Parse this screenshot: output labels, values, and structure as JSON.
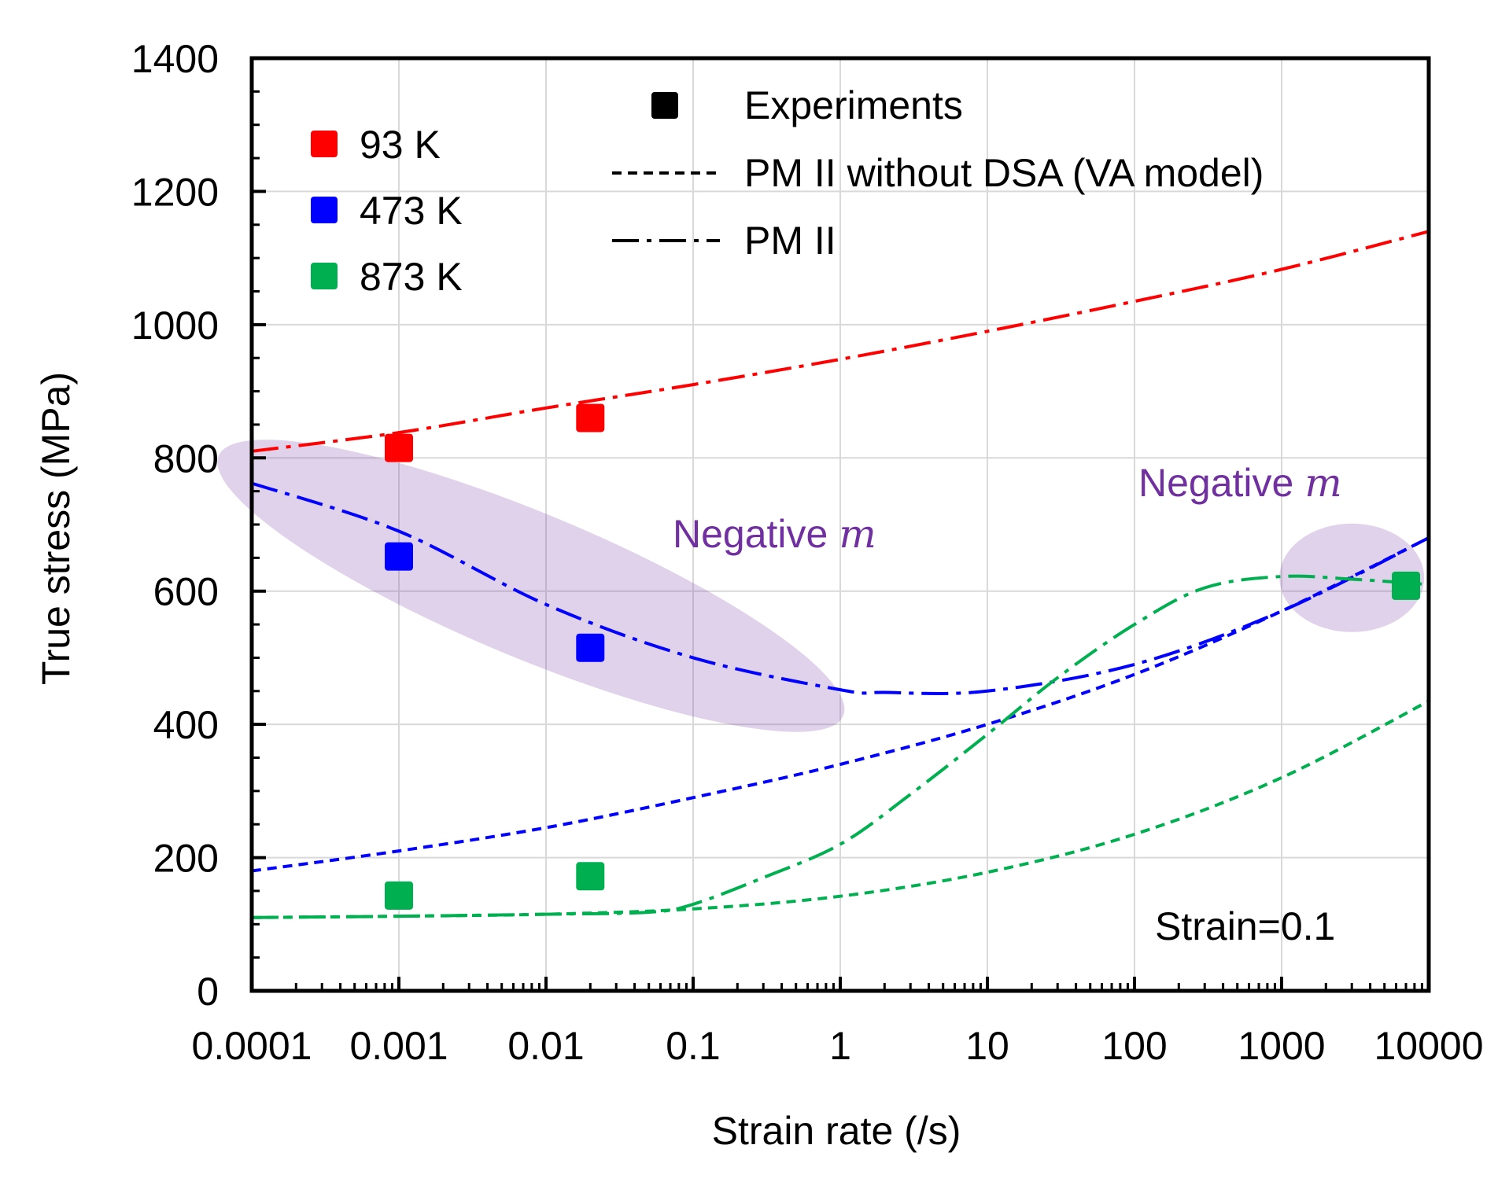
{
  "chart_data": {
    "type": "line",
    "title": "",
    "xlabel": "Strain rate (/s)",
    "ylabel": "True stress (MPa)",
    "xscale": "log",
    "xlim": [
      0.0001,
      10000
    ],
    "ylim": [
      0,
      1400
    ],
    "x_ticks": [
      0.0001,
      0.001,
      0.01,
      0.1,
      1,
      10,
      100,
      1000,
      10000
    ],
    "x_tick_labels": [
      "0.0001",
      "0.001",
      "0.01",
      "0.1",
      "1",
      "10",
      "100",
      "1000",
      "10000"
    ],
    "y_ticks": [
      0,
      200,
      400,
      600,
      800,
      1000,
      1200,
      1400
    ],
    "y_tick_labels": [
      "0",
      "200",
      "400",
      "600",
      "800",
      "1000",
      "1200",
      "1400"
    ],
    "grid": true,
    "legend_left": {
      "placement": "top-left",
      "entries": [
        {
          "label": "93 K",
          "color": "#ff0000"
        },
        {
          "label": "473 K",
          "color": "#0000ff"
        },
        {
          "label": "873 K",
          "color": "#00b050"
        }
      ]
    },
    "legend_right": {
      "placement": "top-right",
      "entries": [
        {
          "label": "Experiments",
          "style": "square",
          "color": "#000000"
        },
        {
          "label": "PM II without DSA (VA model)",
          "style": "dashed",
          "color": "#000000"
        },
        {
          "label": "PM II",
          "style": "dashdot",
          "color": "#000000"
        }
      ]
    },
    "experiments": [
      {
        "name": "93 K",
        "color": "#ff0000",
        "x": [
          0.001,
          0.02
        ],
        "y": [
          815,
          860
        ]
      },
      {
        "name": "473 K",
        "color": "#0000ff",
        "x": [
          0.001,
          0.02
        ],
        "y": [
          652,
          515
        ]
      },
      {
        "name": "873 K",
        "color": "#00b050",
        "x": [
          0.001,
          0.02,
          7000
        ],
        "y": [
          143,
          172,
          608
        ]
      }
    ],
    "series": [
      {
        "name": "93 K PM II",
        "color": "#ff0000",
        "style": "dashdot",
        "x": [
          0.0001,
          0.001,
          0.01,
          0.1,
          1,
          10,
          100,
          1000,
          10000
        ],
        "y": [
          810,
          838,
          875,
          910,
          948,
          990,
          1035,
          1083,
          1140
        ]
      },
      {
        "name": "473 K PM II without DSA (VA model)",
        "color": "#0000ff",
        "style": "dashed",
        "x": [
          0.0001,
          0.001,
          0.01,
          0.1,
          1,
          10,
          100,
          1000,
          10000
        ],
        "y": [
          180,
          210,
          245,
          290,
          340,
          400,
          475,
          570,
          680
        ]
      },
      {
        "name": "473 K PM II",
        "color": "#0000ff",
        "style": "dashdot",
        "x": [
          0.0001,
          0.001,
          0.01,
          0.1,
          1,
          2,
          10,
          100,
          1000,
          10000
        ],
        "y": [
          762,
          690,
          580,
          500,
          452,
          448,
          450,
          490,
          570,
          680
        ]
      },
      {
        "name": "873 K PM II without DSA (VA model)",
        "color": "#00b050",
        "style": "dashed",
        "x": [
          0.0001,
          0.001,
          0.01,
          0.1,
          1,
          10,
          100,
          1000,
          10000
        ],
        "y": [
          110,
          112,
          115,
          123,
          142,
          178,
          235,
          320,
          435
        ]
      },
      {
        "name": "873 K PM II",
        "color": "#00b050",
        "style": "dashdot",
        "x": [
          0.0001,
          0.001,
          0.01,
          0.05,
          0.1,
          0.3,
          1,
          3,
          10,
          30,
          100,
          300,
          1000,
          3000,
          10000
        ],
        "y": [
          110,
          112,
          115,
          118,
          130,
          170,
          220,
          295,
          385,
          470,
          550,
          605,
          622,
          618,
          610
        ]
      }
    ],
    "highlights": [
      {
        "label": "Negative",
        "symbol": "m",
        "color": "#7030a0"
      },
      {
        "label": "Negative",
        "symbol": "m",
        "color": "#7030a0"
      }
    ],
    "annotations": [
      {
        "text": "Strain=0.1"
      }
    ]
  }
}
